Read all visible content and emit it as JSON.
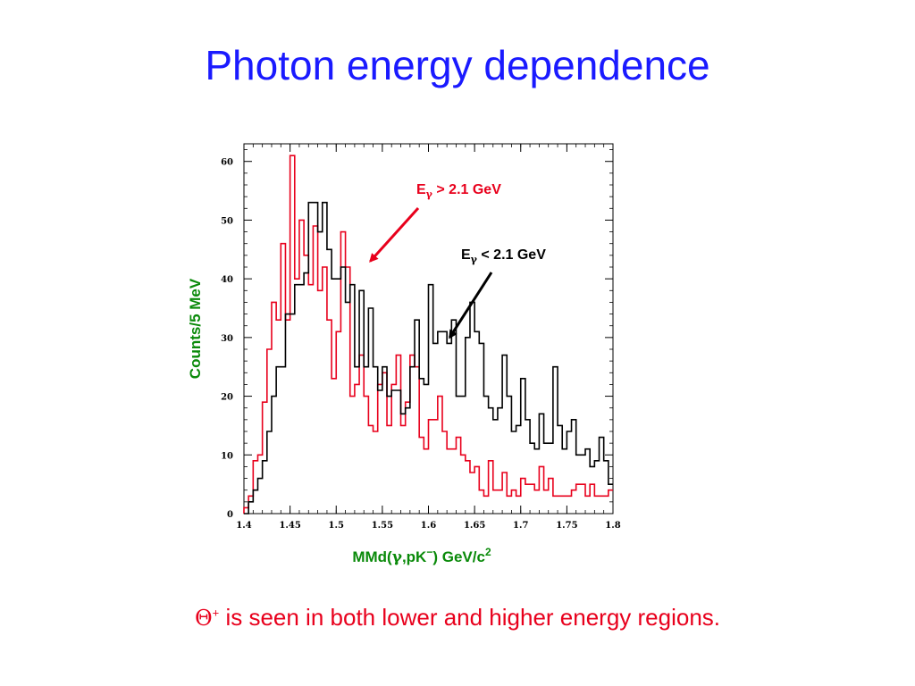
{
  "slide": {
    "title": "Photon energy dependence",
    "caption_symbol": "Θ",
    "caption_superscript": "+",
    "caption_text": " is seen in both lower and higher energy regions."
  },
  "colors": {
    "title": "#1a1aff",
    "caption": "#e8001c",
    "axis_label": "#0a8a0a",
    "series_high": "#e8001c",
    "series_low": "#000000"
  },
  "chart_data": {
    "type": "histogram",
    "title": "",
    "xlabel": {
      "main": "MMd(",
      "gamma": "γ",
      "rest": ",pK",
      "sup_minus": "−",
      "unit": ") GeV/c",
      "unit_sup": "2"
    },
    "ylabel": "Counts/5 MeV",
    "xlim": [
      1.4,
      1.8
    ],
    "ylim": [
      0,
      63
    ],
    "bin_width": 0.005,
    "x_ticks": [
      "1.4",
      "1.45",
      "1.5",
      "1.55",
      "1.6",
      "1.65",
      "1.7",
      "1.75",
      "1.8"
    ],
    "y_ticks": [
      "0",
      "10",
      "20",
      "30",
      "40",
      "50",
      "60"
    ],
    "grid": false,
    "series": [
      {
        "name": "Eγ > 2.1 GeV",
        "label_main": "E",
        "label_sub": "γ",
        "label_rest": " > 2.1 GeV",
        "color": "#e8001c",
        "arrow_to": [
          1.537,
          43
        ],
        "values": [
          1,
          3,
          9,
          10,
          19,
          28,
          36,
          33,
          46,
          33,
          61,
          40,
          50,
          44,
          39,
          49,
          38,
          42,
          33,
          23,
          31,
          48,
          42,
          20,
          22,
          27,
          20,
          15,
          14,
          22,
          24,
          15,
          22,
          27,
          15,
          19,
          27,
          25,
          13,
          11,
          16,
          16,
          20,
          14,
          11,
          11,
          13,
          10,
          9,
          7,
          8,
          4,
          3,
          9,
          4,
          4,
          7,
          3,
          4,
          3,
          6,
          5,
          5,
          4,
          8,
          4,
          6,
          3,
          3,
          3,
          3,
          4,
          5,
          5,
          3,
          5,
          3,
          3,
          3,
          4
        ]
      },
      {
        "name": "Eγ < 2.1 GeV",
        "label_main": "E",
        "label_sub": "γ",
        "label_rest": " < 2.1 GeV",
        "color": "#000000",
        "arrow_to": [
          1.623,
          30
        ],
        "values": [
          0,
          2,
          4,
          6,
          9,
          14,
          20,
          25,
          25,
          34,
          34,
          39,
          39,
          41,
          53,
          53,
          48,
          53,
          45,
          40,
          40,
          42,
          36,
          39,
          25,
          38,
          25,
          35,
          25,
          21,
          25,
          20,
          21,
          21,
          17,
          18,
          25,
          33,
          23,
          22,
          39,
          29,
          31,
          31,
          29,
          33,
          20,
          20,
          30,
          36,
          31,
          29,
          20,
          18,
          16,
          18,
          27,
          20,
          14,
          15,
          23,
          16,
          12,
          11,
          17,
          12,
          12,
          25,
          15,
          11,
          14,
          16,
          10,
          10,
          11,
          8,
          9,
          13,
          9,
          5
        ]
      }
    ]
  }
}
